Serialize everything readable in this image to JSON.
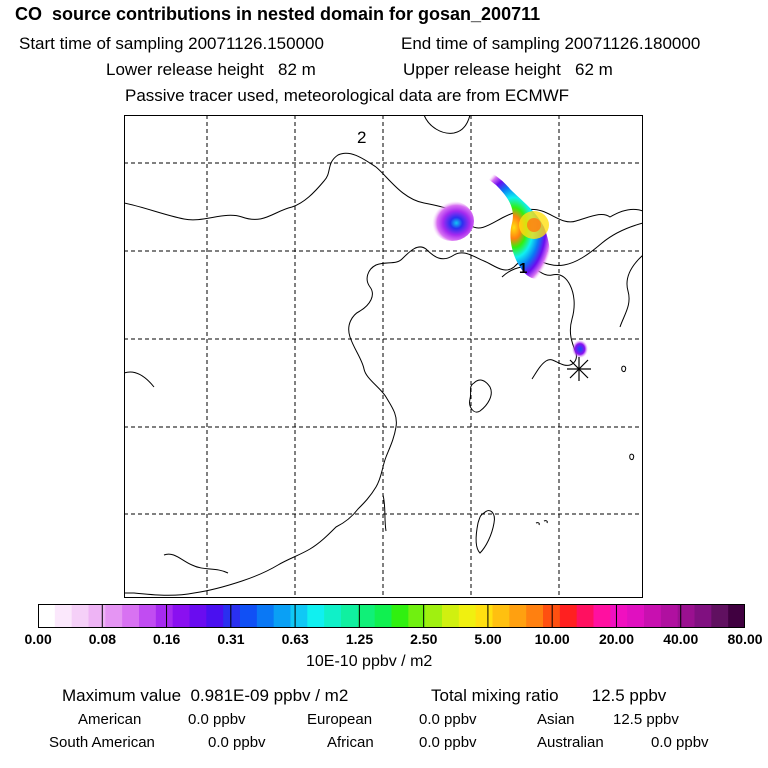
{
  "header": {
    "title": "CO  source contributions in nested domain for gosan_200711",
    "start_time": "Start time of sampling 20071126.150000",
    "end_time": "End time of sampling 20071126.180000",
    "lower_release": "Lower release height   82 m",
    "upper_release": "Upper release height   62 m",
    "tracer_note": "Passive tracer used, meteorological data are from ECMWF"
  },
  "map": {
    "label_1": "1",
    "label_2": "2",
    "station_marker": "asterisk-icon"
  },
  "colorbar": {
    "units": "10E-10 ppbv / m2",
    "tick_labels": [
      "0.00",
      "0.08",
      "0.16",
      "0.31",
      "0.63",
      "1.25",
      "2.50",
      "5.00",
      "10.00",
      "20.00",
      "40.00",
      "80.00"
    ],
    "colors": [
      "#ffffff",
      "#fbe8fc",
      "#f5d0f8",
      "#eeb4f5",
      "#e595f3",
      "#d872f2",
      "#c14cf2",
      "#a62af0",
      "#8a10f0",
      "#6a0cf0",
      "#4a10f0",
      "#2a30f0",
      "#1050f5",
      "#0a78f5",
      "#0aa0f5",
      "#10c8f5",
      "#10f0f0",
      "#10f0c8",
      "#10f0a0",
      "#10f078",
      "#10f050",
      "#30f010",
      "#70f010",
      "#a0f010",
      "#d0f010",
      "#f0f010",
      "#ffe010",
      "#ffc010",
      "#ffa010",
      "#ff8010",
      "#ff5010",
      "#ff2020",
      "#ff1060",
      "#ff10a0",
      "#f010c0",
      "#e010c0",
      "#c810b0",
      "#b010a0",
      "#9a1090",
      "#801080",
      "#601060",
      "#400040"
    ]
  },
  "summary": {
    "max_value": "Maximum value  0.981E-09 ppbv / m2",
    "total_mixing": "Total mixing ratio       12.5 ppbv",
    "american_label": "American",
    "american_value": "0.0 ppbv",
    "european_label": "European",
    "european_value": "0.0 ppbv",
    "asian_label": "Asian",
    "asian_value": "12.5 ppbv",
    "south_american_label": "South American",
    "south_american_value": "0.0 ppbv",
    "african_label": "African",
    "african_value": "0.0 ppbv",
    "australian_label": "Australian",
    "australian_value": "0.0 ppbv"
  }
}
